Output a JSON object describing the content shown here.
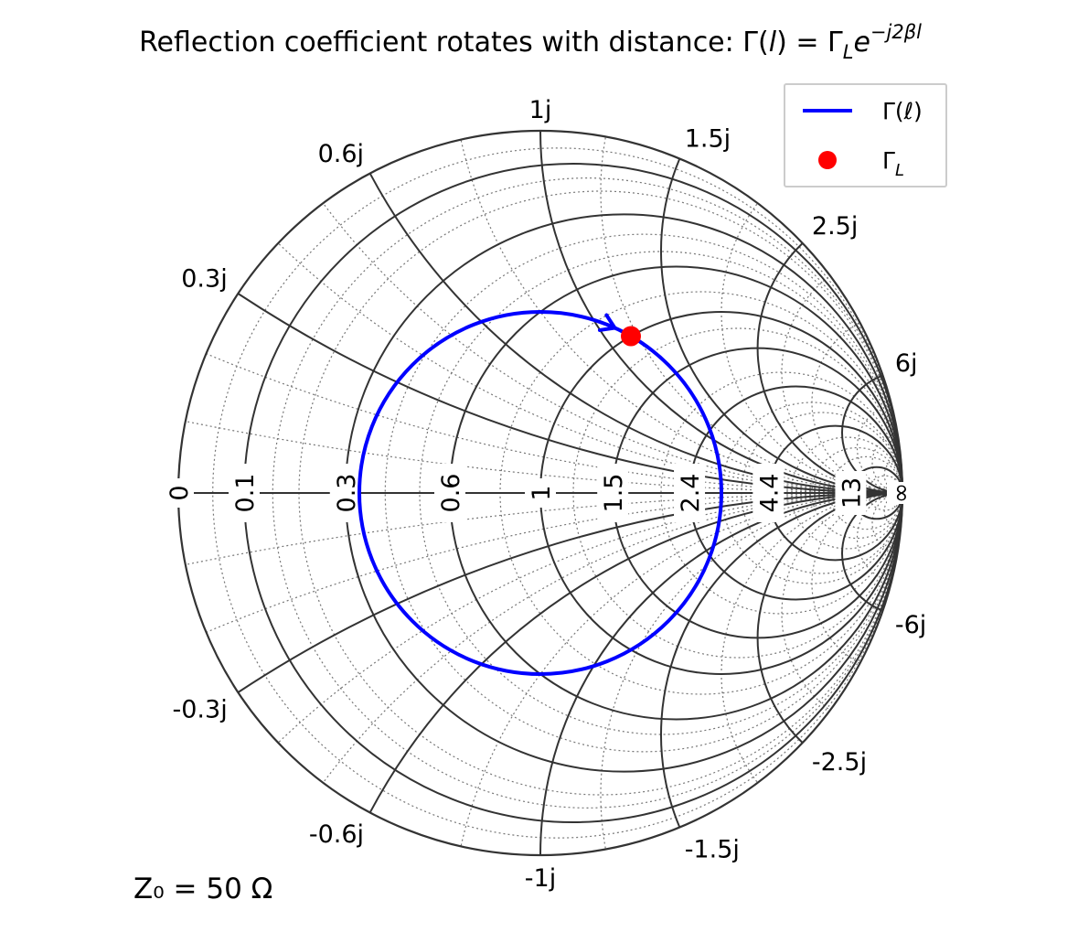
{
  "chart_data": {
    "type": "smith_chart",
    "title": {
      "prefix": "Reflection coefficient rotates with distance: ",
      "gamma": "Γ",
      "open_paren": "(",
      "var": "l",
      "close_paren": ")",
      "equals": " = ",
      "gamma_load": "Γ",
      "load_subscript": "L",
      "exp_base": "e",
      "exponent": "−j2βl"
    },
    "annotation": "Z₀ = 50 Ω",
    "resistance_labels": [
      "0",
      "0.1",
      "0.3",
      "0.6",
      "1",
      "1.5",
      "2.4",
      "4.4",
      "13",
      "∞"
    ],
    "resistance_label_values": [
      0,
      0.1,
      0.3,
      0.6,
      1,
      1.5,
      2.4,
      4.4,
      13,
      1000000
    ],
    "reactance_labels": [
      "1j",
      "1.5j",
      "0.6j",
      "2.5j",
      "0.3j",
      "6j",
      "-6j",
      "-0.3j",
      "-2.5j",
      "-0.6j",
      "-1.5j",
      "-1j"
    ],
    "reactance_label_values": [
      1,
      1.5,
      0.6,
      2.5,
      0.3,
      6,
      -6,
      -0.3,
      -2.5,
      -0.6,
      -1.5,
      -1
    ],
    "major_resistance_circles": [
      0.1,
      0.3,
      0.6,
      1,
      1.5,
      2.4,
      4.4,
      13
    ],
    "major_reactance_arcs": [
      0.3,
      0.6,
      1,
      1.5,
      2.5,
      6
    ],
    "minor_resistance_circles": [
      0.05,
      0.15,
      0.2,
      0.4,
      0.5,
      0.8,
      1.2,
      2,
      3,
      3.5,
      5.5,
      7,
      9,
      20,
      40
    ],
    "minor_reactance_arcs": [
      0.1,
      0.2,
      0.4,
      0.5,
      0.8,
      1.2,
      2,
      3,
      4,
      8,
      12,
      20,
      40
    ],
    "series": [
      {
        "name": "Γ(ℓ)",
        "legend_label": "Γ(ℓ)",
        "color": "#0000ff",
        "kind": "line",
        "description_values": {
          "gamma_magnitude": 0.5,
          "start_angle_deg": 60,
          "direction": "clockwise"
        }
      },
      {
        "name": "Γ_L",
        "legend_label": "Γ",
        "legend_subscript": "L",
        "color": "#ff0000",
        "kind": "point",
        "gamma_real": 0.25,
        "gamma_imag": 0.433
      }
    ],
    "legend_position": "top-right",
    "grid": true
  }
}
